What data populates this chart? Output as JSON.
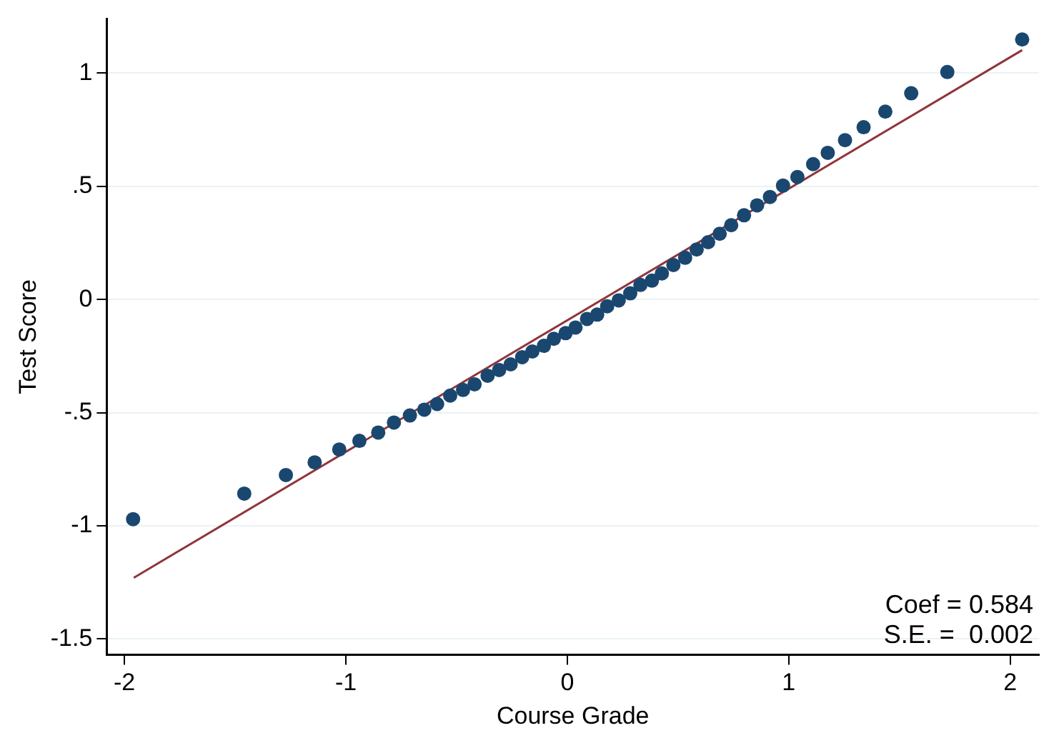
{
  "chart_data": {
    "type": "scatter",
    "xlabel": "Course Grade",
    "ylabel": "Test Score",
    "xlim": [
      -2.08,
      2.13
    ],
    "ylim": [
      -1.57,
      1.24
    ],
    "xticks": [
      -2,
      -1,
      0,
      1,
      2
    ],
    "yticks": [
      {
        "value": -1.5,
        "label": "-1.5"
      },
      {
        "value": -1,
        "label": "-1"
      },
      {
        "value": -0.5,
        "label": "-.5"
      },
      0,
      {
        "value": 0.5,
        "label": ".5"
      },
      1
    ],
    "grid": "y",
    "legend": false,
    "marker": "circle",
    "annotations": [
      "Coef = 0.584",
      "S.E. =  0.002"
    ],
    "series": [
      {
        "type": "scatter",
        "color": "#1a476f",
        "x": [
          -1.961,
          -1.459,
          -1.271,
          -1.141,
          -1.03,
          -0.939,
          -0.854,
          -0.783,
          -0.711,
          -0.646,
          -0.588,
          -0.529,
          -0.471,
          -0.419,
          -0.36,
          -0.308,
          -0.256,
          -0.204,
          -0.158,
          -0.106,
          -0.061,
          -0.008,
          0.037,
          0.089,
          0.135,
          0.18,
          0.232,
          0.284,
          0.33,
          0.382,
          0.427,
          0.479,
          0.532,
          0.584,
          0.636,
          0.688,
          0.74,
          0.798,
          0.857,
          0.915,
          0.974,
          1.039,
          1.11,
          1.176,
          1.254,
          1.338,
          1.436,
          1.553,
          1.716,
          2.054
        ],
        "values": [
          -0.971,
          -0.858,
          -0.776,
          -0.72,
          -0.663,
          -0.625,
          -0.588,
          -0.544,
          -0.513,
          -0.487,
          -0.462,
          -0.425,
          -0.4,
          -0.375,
          -0.337,
          -0.312,
          -0.287,
          -0.255,
          -0.23,
          -0.205,
          -0.174,
          -0.149,
          -0.124,
          -0.086,
          -0.067,
          -0.03,
          -0.004,
          0.027,
          0.064,
          0.083,
          0.115,
          0.152,
          0.184,
          0.221,
          0.253,
          0.29,
          0.328,
          0.372,
          0.416,
          0.453,
          0.503,
          0.541,
          0.598,
          0.648,
          0.704,
          0.761,
          0.83,
          0.911,
          1.005,
          1.149
        ]
      },
      {
        "type": "line",
        "color": "#90353b",
        "x": [
          -1.958,
          2.054
        ],
        "values": [
          -1.23,
          1.102
        ],
        "marker": "none"
      }
    ]
  }
}
